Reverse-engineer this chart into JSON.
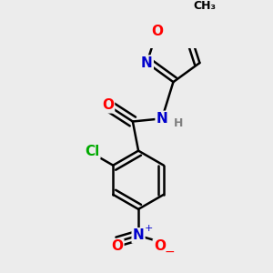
{
  "bg_color": "#ececec",
  "bond_color": "#000000",
  "bond_width": 1.8,
  "atom_colors": {
    "O": "#ff0000",
    "N": "#0000cc",
    "Cl": "#00aa00",
    "C": "#000000",
    "H": "#808080"
  },
  "font_size": 10,
  "fig_size": [
    3.0,
    3.0
  ],
  "dpi": 100
}
